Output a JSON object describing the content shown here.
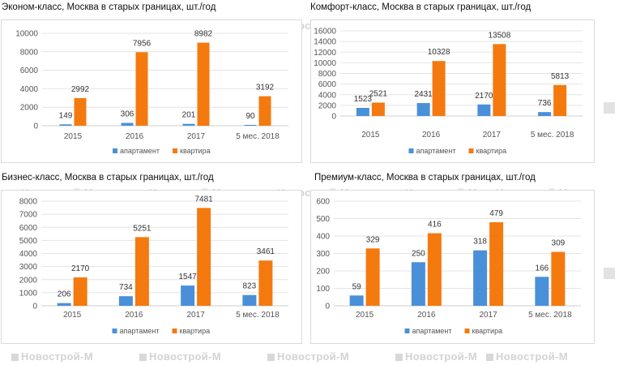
{
  "watermark": {
    "text": "Новострой-М",
    "glyph": "building-icon"
  },
  "colors": {
    "apartment": "#4a90d9",
    "flat": "#f47a0f",
    "grid": "#e4e4e4",
    "axis_text": "#555555",
    "label_text": "#333333"
  },
  "chart_data": [
    {
      "type": "bar",
      "title": "Эконом-класс, Москва в старых границах, шт./год",
      "categories": [
        "2015",
        "2016",
        "2017",
        "5 мес. 2018"
      ],
      "series": [
        {
          "name": "апартамент",
          "values": [
            149,
            306,
            201,
            90
          ]
        },
        {
          "name": "квартира",
          "values": [
            2992,
            7956,
            8982,
            3192
          ]
        }
      ],
      "ylim": [
        0,
        10000
      ],
      "yticks": [
        0,
        2000,
        4000,
        6000,
        8000,
        10000
      ],
      "legend_position": "bottom",
      "grid": true
    },
    {
      "type": "bar",
      "title": "Комфорт-класс, Москва в старых границах, шт./год",
      "categories": [
        "2015",
        "2016",
        "2017",
        "5 мес. 2018"
      ],
      "series": [
        {
          "name": "апартамент",
          "values": [
            1523,
            2431,
            2170,
            736
          ]
        },
        {
          "name": "квартира",
          "values": [
            2521,
            10328,
            13508,
            5813
          ]
        }
      ],
      "ylim": [
        0,
        16000
      ],
      "yticks": [
        0,
        2000,
        4000,
        6000,
        8000,
        10000,
        12000,
        14000,
        16000
      ],
      "legend_position": "bottom",
      "grid": true
    },
    {
      "type": "bar",
      "title": "Бизнес-класс, Москва в старых границах, шт./год",
      "categories": [
        "2015",
        "2016",
        "2017",
        "5 мес. 2018"
      ],
      "series": [
        {
          "name": "апартамент",
          "values": [
            206,
            734,
            1547,
            823
          ]
        },
        {
          "name": "квартира",
          "values": [
            2170,
            5251,
            7481,
            3461
          ]
        }
      ],
      "ylim": [
        0,
        8000
      ],
      "yticks": [
        0,
        1000,
        2000,
        3000,
        4000,
        5000,
        6000,
        7000,
        8000
      ],
      "legend_position": "bottom",
      "grid": true
    },
    {
      "type": "bar",
      "title": "Премиум-класс, Москва в старых границах, шт./год",
      "categories": [
        "2015",
        "2016",
        "2017",
        "5 мес. 2018"
      ],
      "series": [
        {
          "name": "апартамент",
          "values": [
            59,
            250,
            318,
            166
          ]
        },
        {
          "name": "квартира",
          "values": [
            329,
            416,
            479,
            309
          ]
        }
      ],
      "ylim": [
        0,
        600
      ],
      "yticks": [
        0,
        100,
        200,
        300,
        400,
        500,
        600
      ],
      "legend_position": "bottom",
      "grid": true
    }
  ]
}
